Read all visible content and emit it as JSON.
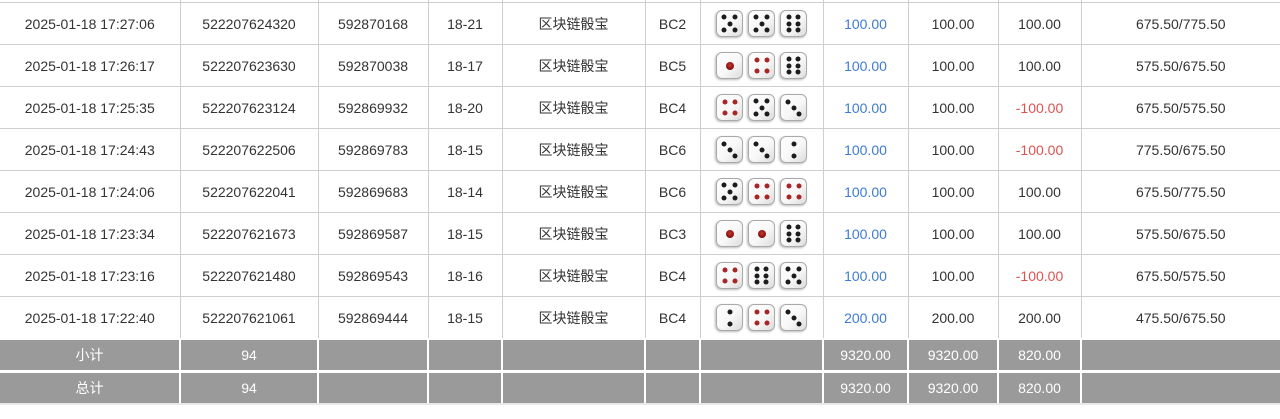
{
  "table": {
    "game_name": "区块链骰宝",
    "rows": [
      {
        "time": "2025-01-18 17:27:06",
        "bet_no": "522207624320",
        "round_no": "592870168",
        "period": "18-21",
        "game": "区块链骰宝",
        "play": "BC2",
        "dice": [
          5,
          5,
          6
        ],
        "bet": "100.00",
        "valid": "100.00",
        "winloss": "100.00",
        "result": "675.50/775.50"
      },
      {
        "time": "2025-01-18 17:26:17",
        "bet_no": "522207623630",
        "round_no": "592870038",
        "period": "18-17",
        "game": "区块链骰宝",
        "play": "BC5",
        "dice": [
          1,
          4,
          6
        ],
        "bet": "100.00",
        "valid": "100.00",
        "winloss": "100.00",
        "result": "575.50/675.50"
      },
      {
        "time": "2025-01-18 17:25:35",
        "bet_no": "522207623124",
        "round_no": "592869932",
        "period": "18-20",
        "game": "区块链骰宝",
        "play": "BC4",
        "dice": [
          4,
          5,
          3
        ],
        "bet": "100.00",
        "valid": "100.00",
        "winloss": "-100.00",
        "result": "675.50/575.50"
      },
      {
        "time": "2025-01-18 17:24:43",
        "bet_no": "522207622506",
        "round_no": "592869783",
        "period": "18-15",
        "game": "区块链骰宝",
        "play": "BC6",
        "dice": [
          3,
          3,
          2
        ],
        "bet": "100.00",
        "valid": "100.00",
        "winloss": "-100.00",
        "result": "775.50/675.50"
      },
      {
        "time": "2025-01-18 17:24:06",
        "bet_no": "522207622041",
        "round_no": "592869683",
        "period": "18-14",
        "game": "区块链骰宝",
        "play": "BC6",
        "dice": [
          5,
          4,
          4
        ],
        "bet": "100.00",
        "valid": "100.00",
        "winloss": "100.00",
        "result": "675.50/775.50"
      },
      {
        "time": "2025-01-18 17:23:34",
        "bet_no": "522207621673",
        "round_no": "592869587",
        "period": "18-15",
        "game": "区块链骰宝",
        "play": "BC3",
        "dice": [
          1,
          1,
          6
        ],
        "bet": "100.00",
        "valid": "100.00",
        "winloss": "100.00",
        "result": "575.50/675.50"
      },
      {
        "time": "2025-01-18 17:23:16",
        "bet_no": "522207621480",
        "round_no": "592869543",
        "period": "18-16",
        "game": "区块链骰宝",
        "play": "BC4",
        "dice": [
          4,
          6,
          5
        ],
        "bet": "100.00",
        "valid": "100.00",
        "winloss": "-100.00",
        "result": "675.50/575.50"
      },
      {
        "time": "2025-01-18 17:22:40",
        "bet_no": "522207621061",
        "round_no": "592869444",
        "period": "18-15",
        "game": "区块链骰宝",
        "play": "BC4",
        "dice": [
          2,
          4,
          3
        ],
        "bet": "200.00",
        "valid": "200.00",
        "winloss": "200.00",
        "result": "475.50/675.50"
      }
    ],
    "subtotal": {
      "label": "小计",
      "count": "94",
      "bet": "9320.00",
      "valid": "9320.00",
      "winloss": "820.00"
    },
    "total": {
      "label": "总计",
      "count": "94",
      "bet": "9320.00",
      "valid": "9320.00",
      "winloss": "820.00"
    }
  },
  "colors": {
    "bet_amount_blue": "#3e7bd4",
    "negative_red": "#e05252",
    "summary_gray": "#9a9a9a",
    "grid_border": "#cfcfcf",
    "dice_pip_red": "#a92424",
    "dice_pip_black": "#1c1c1c"
  }
}
